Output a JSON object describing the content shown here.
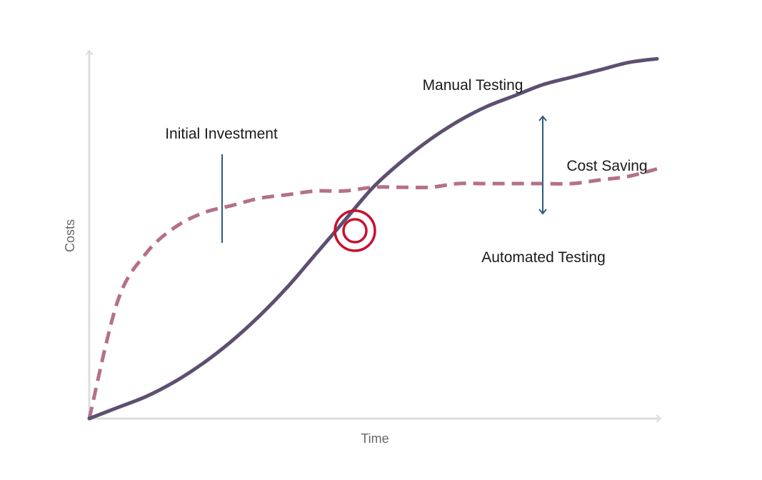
{
  "chart_data": {
    "type": "line",
    "title": "",
    "xlabel": "Time",
    "ylabel": "Costs",
    "grid": false,
    "legend": "none",
    "x": [
      0,
      0.05,
      0.1,
      0.15,
      0.2,
      0.25,
      0.3,
      0.35,
      0.4,
      0.45,
      0.5,
      0.55,
      0.6,
      0.65,
      0.7,
      0.75,
      0.8,
      0.85,
      0.9,
      0.95,
      1.0
    ],
    "series": [
      {
        "name": "Manual Testing",
        "style": "solid",
        "color": "#5e4f72",
        "values": [
          0,
          0.03,
          0.06,
          0.1,
          0.15,
          0.21,
          0.28,
          0.36,
          0.45,
          0.54,
          0.63,
          0.7,
          0.76,
          0.81,
          0.85,
          0.88,
          0.91,
          0.93,
          0.95,
          0.97,
          0.98
        ]
      },
      {
        "name": "Automated Testing",
        "style": "dashed",
        "color": "#b5708a",
        "values": [
          0,
          0.32,
          0.45,
          0.52,
          0.56,
          0.58,
          0.6,
          0.61,
          0.62,
          0.62,
          0.63,
          0.63,
          0.63,
          0.64,
          0.64,
          0.64,
          0.64,
          0.64,
          0.65,
          0.66,
          0.68
        ]
      }
    ],
    "annotations": {
      "manual_label": "Manual Testing",
      "automated_label": "Automated Testing",
      "initial_investment": "Initial Investment",
      "cost_saving": "Cost Saving"
    },
    "colors": {
      "axis": "#dedede",
      "axis_title": "#666666",
      "target": "#c8102e",
      "annotation_line": "#2f5a7a",
      "text": "#1a1a1a"
    }
  }
}
